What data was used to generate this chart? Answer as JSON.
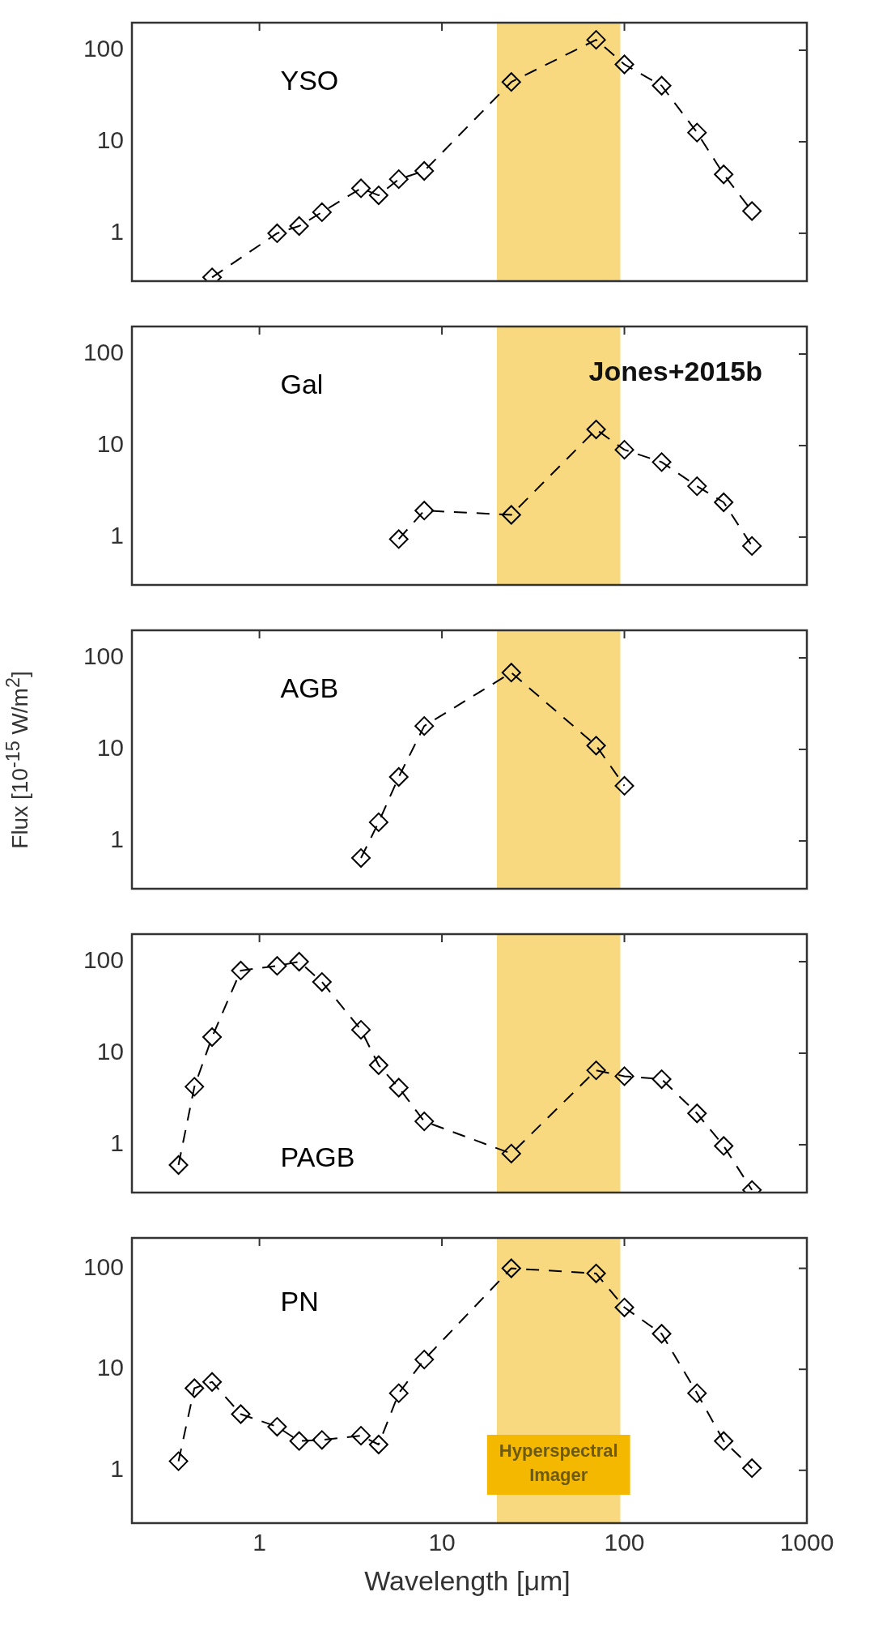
{
  "chart_data": [
    {
      "type": "line",
      "xlim": [
        0.2,
        1000
      ],
      "ylim": [
        0.3,
        200
      ],
      "xticks": [
        1,
        10,
        100,
        1000
      ],
      "yticks": [
        1,
        10,
        100
      ],
      "log": "xy",
      "marker": "diamond",
      "line_style": "dashed",
      "tick_labels": "y",
      "grid": false,
      "legend": false,
      "series": [
        {
          "name": "YSO",
          "color": "#000000",
          "x": [
            0.55,
            1.25,
            1.65,
            2.2,
            3.6,
            4.5,
            5.8,
            8,
            24,
            70,
            100,
            160,
            250,
            350,
            500
          ],
          "values": [
            0.33,
            1.0,
            1.2,
            1.7,
            3.1,
            2.6,
            3.9,
            4.8,
            45,
            130,
            70,
            41,
            12.6,
            4.4,
            1.75
          ]
        }
      ],
      "bands": [
        {
          "axis": "x",
          "from": 20,
          "to": 95,
          "color": "#f9d97f"
        }
      ]
    },
    {
      "type": "line",
      "xlim": [
        0.2,
        1000
      ],
      "ylim": [
        0.3,
        200
      ],
      "xticks": [
        1,
        10,
        100,
        1000
      ],
      "yticks": [
        1,
        10,
        100
      ],
      "log": "xy",
      "marker": "diamond",
      "line_style": "dashed",
      "tick_labels": "y",
      "grid": false,
      "legend": false,
      "series": [
        {
          "name": "Gal",
          "color": "#000000",
          "x": [
            5.8,
            8,
            24,
            70,
            100,
            160,
            250,
            350,
            500
          ],
          "values": [
            0.95,
            1.95,
            1.75,
            15,
            9,
            6.6,
            3.6,
            2.4,
            0.8
          ]
        }
      ],
      "bands": [
        {
          "axis": "x",
          "from": 20,
          "to": 95,
          "color": "#f9d97f"
        }
      ],
      "annotations": [
        "Jones+2015b"
      ]
    },
    {
      "type": "line",
      "xlim": [
        0.2,
        1000
      ],
      "ylim": [
        0.3,
        200
      ],
      "xticks": [
        1,
        10,
        100,
        1000
      ],
      "yticks": [
        1,
        10,
        100
      ],
      "log": "xy",
      "marker": "diamond",
      "line_style": "dashed",
      "tick_labels": "y",
      "grid": false,
      "legend": false,
      "ylabel": "Flux [10$^{-15}$ W/m$^{2}$]",
      "series": [
        {
          "name": "AGB",
          "color": "#000000",
          "x": [
            3.6,
            4.5,
            5.8,
            8,
            24,
            70,
            100
          ],
          "values": [
            0.65,
            1.6,
            5,
            18,
            69,
            11,
            4
          ]
        }
      ],
      "bands": [
        {
          "axis": "x",
          "from": 20,
          "to": 95,
          "color": "#f9d97f"
        }
      ]
    },
    {
      "type": "line",
      "xlim": [
        0.2,
        1000
      ],
      "ylim": [
        0.3,
        200
      ],
      "xticks": [
        1,
        10,
        100,
        1000
      ],
      "yticks": [
        1,
        10,
        100
      ],
      "log": "xy",
      "marker": "diamond",
      "line_style": "dashed",
      "tick_labels": "y",
      "grid": false,
      "legend": false,
      "series": [
        {
          "name": "PAGB",
          "color": "#000000",
          "x": [
            0.36,
            0.44,
            0.55,
            0.79,
            1.25,
            1.65,
            2.2,
            3.6,
            4.5,
            5.8,
            8,
            24,
            70,
            100,
            160,
            250,
            350,
            500
          ],
          "values": [
            0.6,
            4.3,
            15,
            80,
            90,
            100,
            60,
            18,
            7.4,
            4.2,
            1.8,
            0.8,
            6.5,
            5.6,
            5.2,
            2.2,
            0.97,
            0.32
          ]
        }
      ],
      "bands": [
        {
          "axis": "x",
          "from": 20,
          "to": 95,
          "color": "#f9d97f"
        }
      ]
    },
    {
      "type": "line",
      "xlim": [
        0.2,
        1000
      ],
      "ylim": [
        0.3,
        200
      ],
      "xticks": [
        1,
        10,
        100,
        1000
      ],
      "yticks": [
        1,
        10,
        100
      ],
      "log": "xy",
      "marker": "diamond",
      "line_style": "dashed",
      "grid": false,
      "legend": false,
      "xlabel": "Wavelength [μm]",
      "series": [
        {
          "name": "PN",
          "color": "#000000",
          "x": [
            0.36,
            0.44,
            0.55,
            0.79,
            1.25,
            1.65,
            2.2,
            3.6,
            4.5,
            5.8,
            8,
            24,
            70,
            100,
            160,
            250,
            350,
            500
          ],
          "values": [
            1.23,
            6.5,
            7.5,
            3.6,
            2.7,
            1.95,
            2.0,
            2.2,
            1.8,
            5.8,
            12.5,
            100,
            89,
            41,
            22.5,
            5.8,
            1.95,
            1.05
          ]
        }
      ],
      "bands": [
        {
          "axis": "x",
          "from": 20,
          "to": 95,
          "color": "#f9d97f",
          "label": "Hyperspectral Imager"
        }
      ]
    }
  ]
}
